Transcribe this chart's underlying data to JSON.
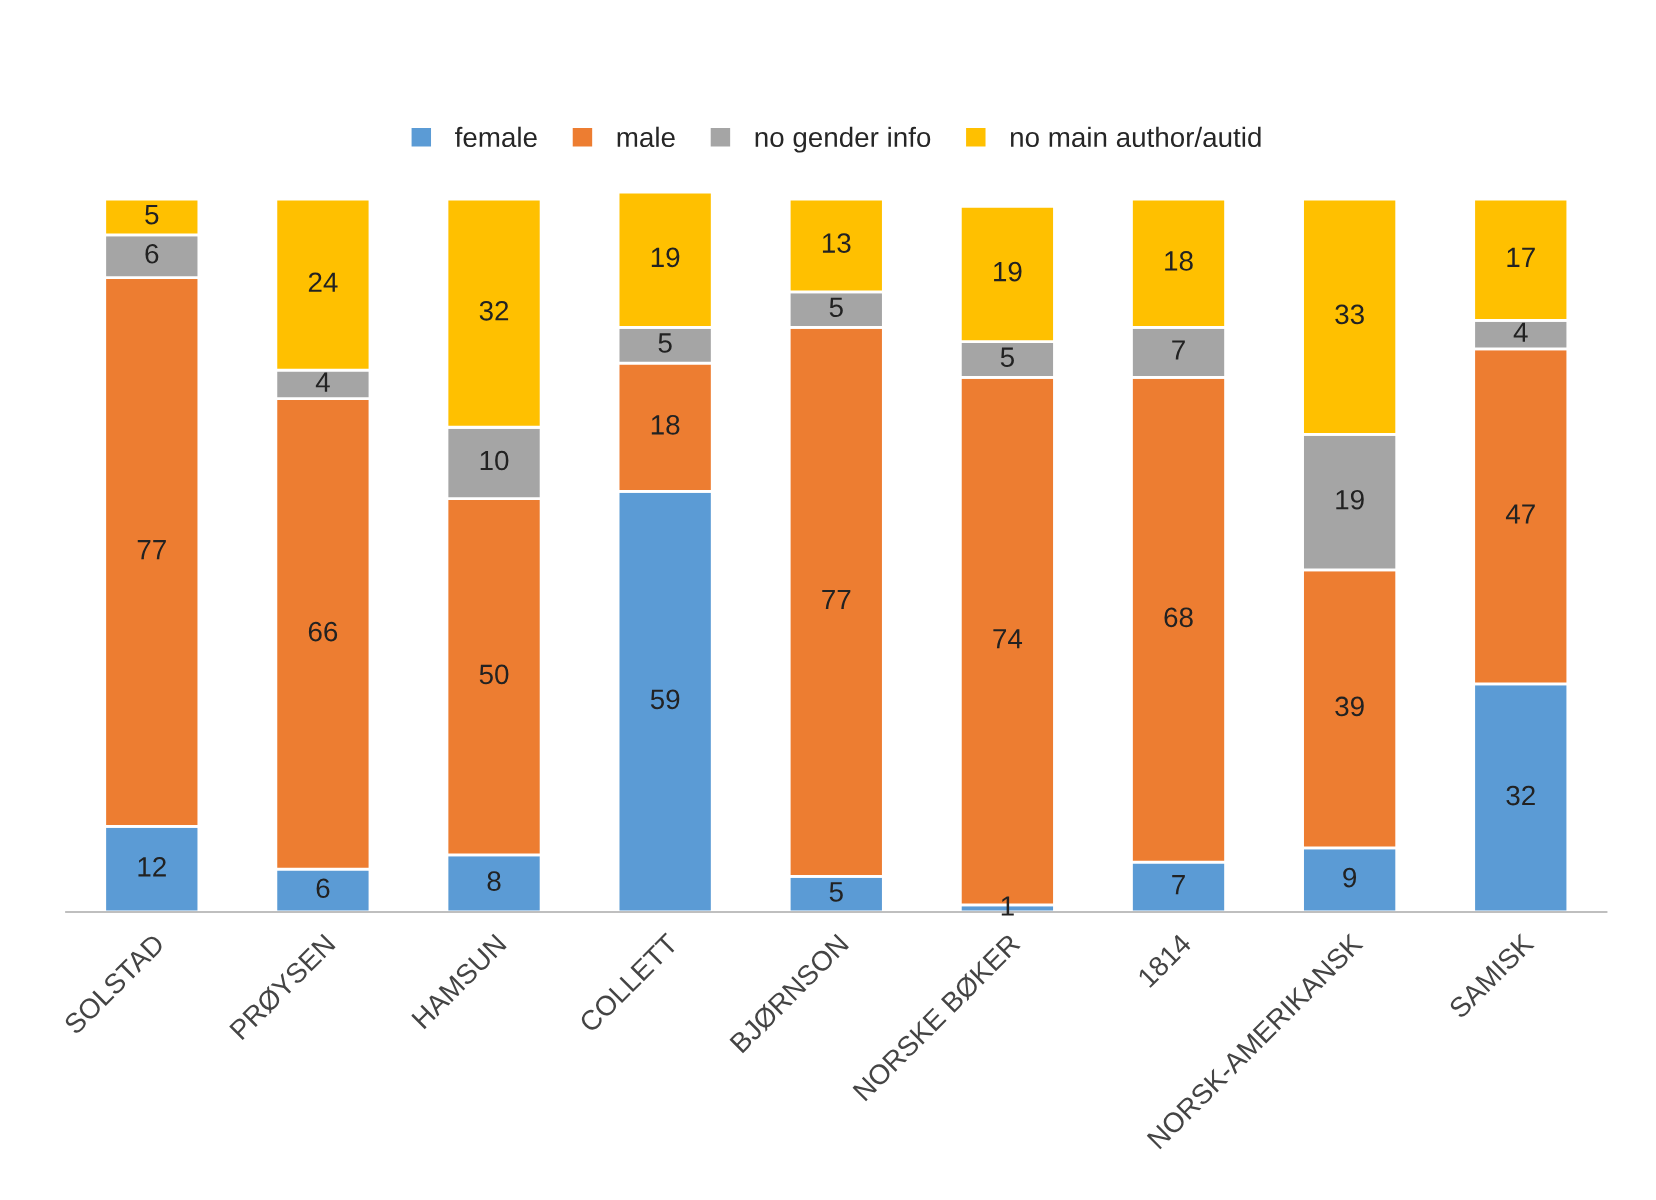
{
  "chart_data": {
    "type": "bar",
    "stacked": true,
    "data_labels": true,
    "legend": "top",
    "grid": false,
    "categories": [
      "SOLSTAD",
      "PRØYSEN",
      "HAMSUN",
      "COLLETT",
      "BJØRNSON",
      "NORSKE BØKER",
      "1814",
      "NORSK-AMERIKANSK",
      "SAMISK"
    ],
    "series": [
      {
        "name": "female",
        "color": "#5b9bd5",
        "values": [
          12,
          6,
          8,
          59,
          5,
          1,
          7,
          9,
          32
        ]
      },
      {
        "name": "male",
        "color": "#ed7d31",
        "values": [
          77,
          66,
          50,
          18,
          77,
          74,
          68,
          39,
          47
        ]
      },
      {
        "name": "no gender info",
        "color": "#a5a5a5",
        "values": [
          6,
          4,
          10,
          5,
          5,
          5,
          7,
          19,
          4
        ]
      },
      {
        "name": "no main author/autid",
        "color": "#ffc000",
        "values": [
          5,
          24,
          32,
          19,
          13,
          19,
          18,
          33,
          17
        ]
      }
    ]
  }
}
